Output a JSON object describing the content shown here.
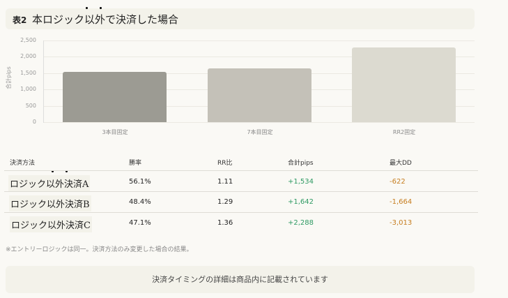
{
  "title": {
    "number": "表2",
    "text": "本ロジック以外で決済した場合"
  },
  "chart_data": {
    "type": "bar",
    "categories": [
      "3本目固定",
      "7本目固定",
      "RR2固定"
    ],
    "values": [
      1534,
      1642,
      2288
    ],
    "ylabel": "合計pips",
    "ylim": [
      0,
      2500
    ],
    "yticks": [
      "0",
      "500",
      "1,000",
      "1,500",
      "2,000",
      "2,500"
    ],
    "grid": true,
    "colors": [
      "#9c9b93",
      "#c4c1b8",
      "#dcdad0"
    ]
  },
  "table": {
    "headers": [
      "決済方法",
      "勝率",
      "RR比",
      "合計pips",
      "最大DD"
    ],
    "rows": [
      [
        "ロジック以外決済A",
        "56.1%",
        "1.11",
        "+1,534",
        "-622"
      ],
      [
        "ロジック以外決済B",
        "48.4%",
        "1.29",
        "+1,642",
        "-1,664"
      ],
      [
        "ロジック以外決済C",
        "47.1%",
        "1.36",
        "+2,288",
        "-3,013"
      ]
    ]
  },
  "note": "※エントリーロジックは同一。決済方法のみ変更した場合の結果。",
  "footer": "決済タイミングの詳細は商品内に記載されています"
}
